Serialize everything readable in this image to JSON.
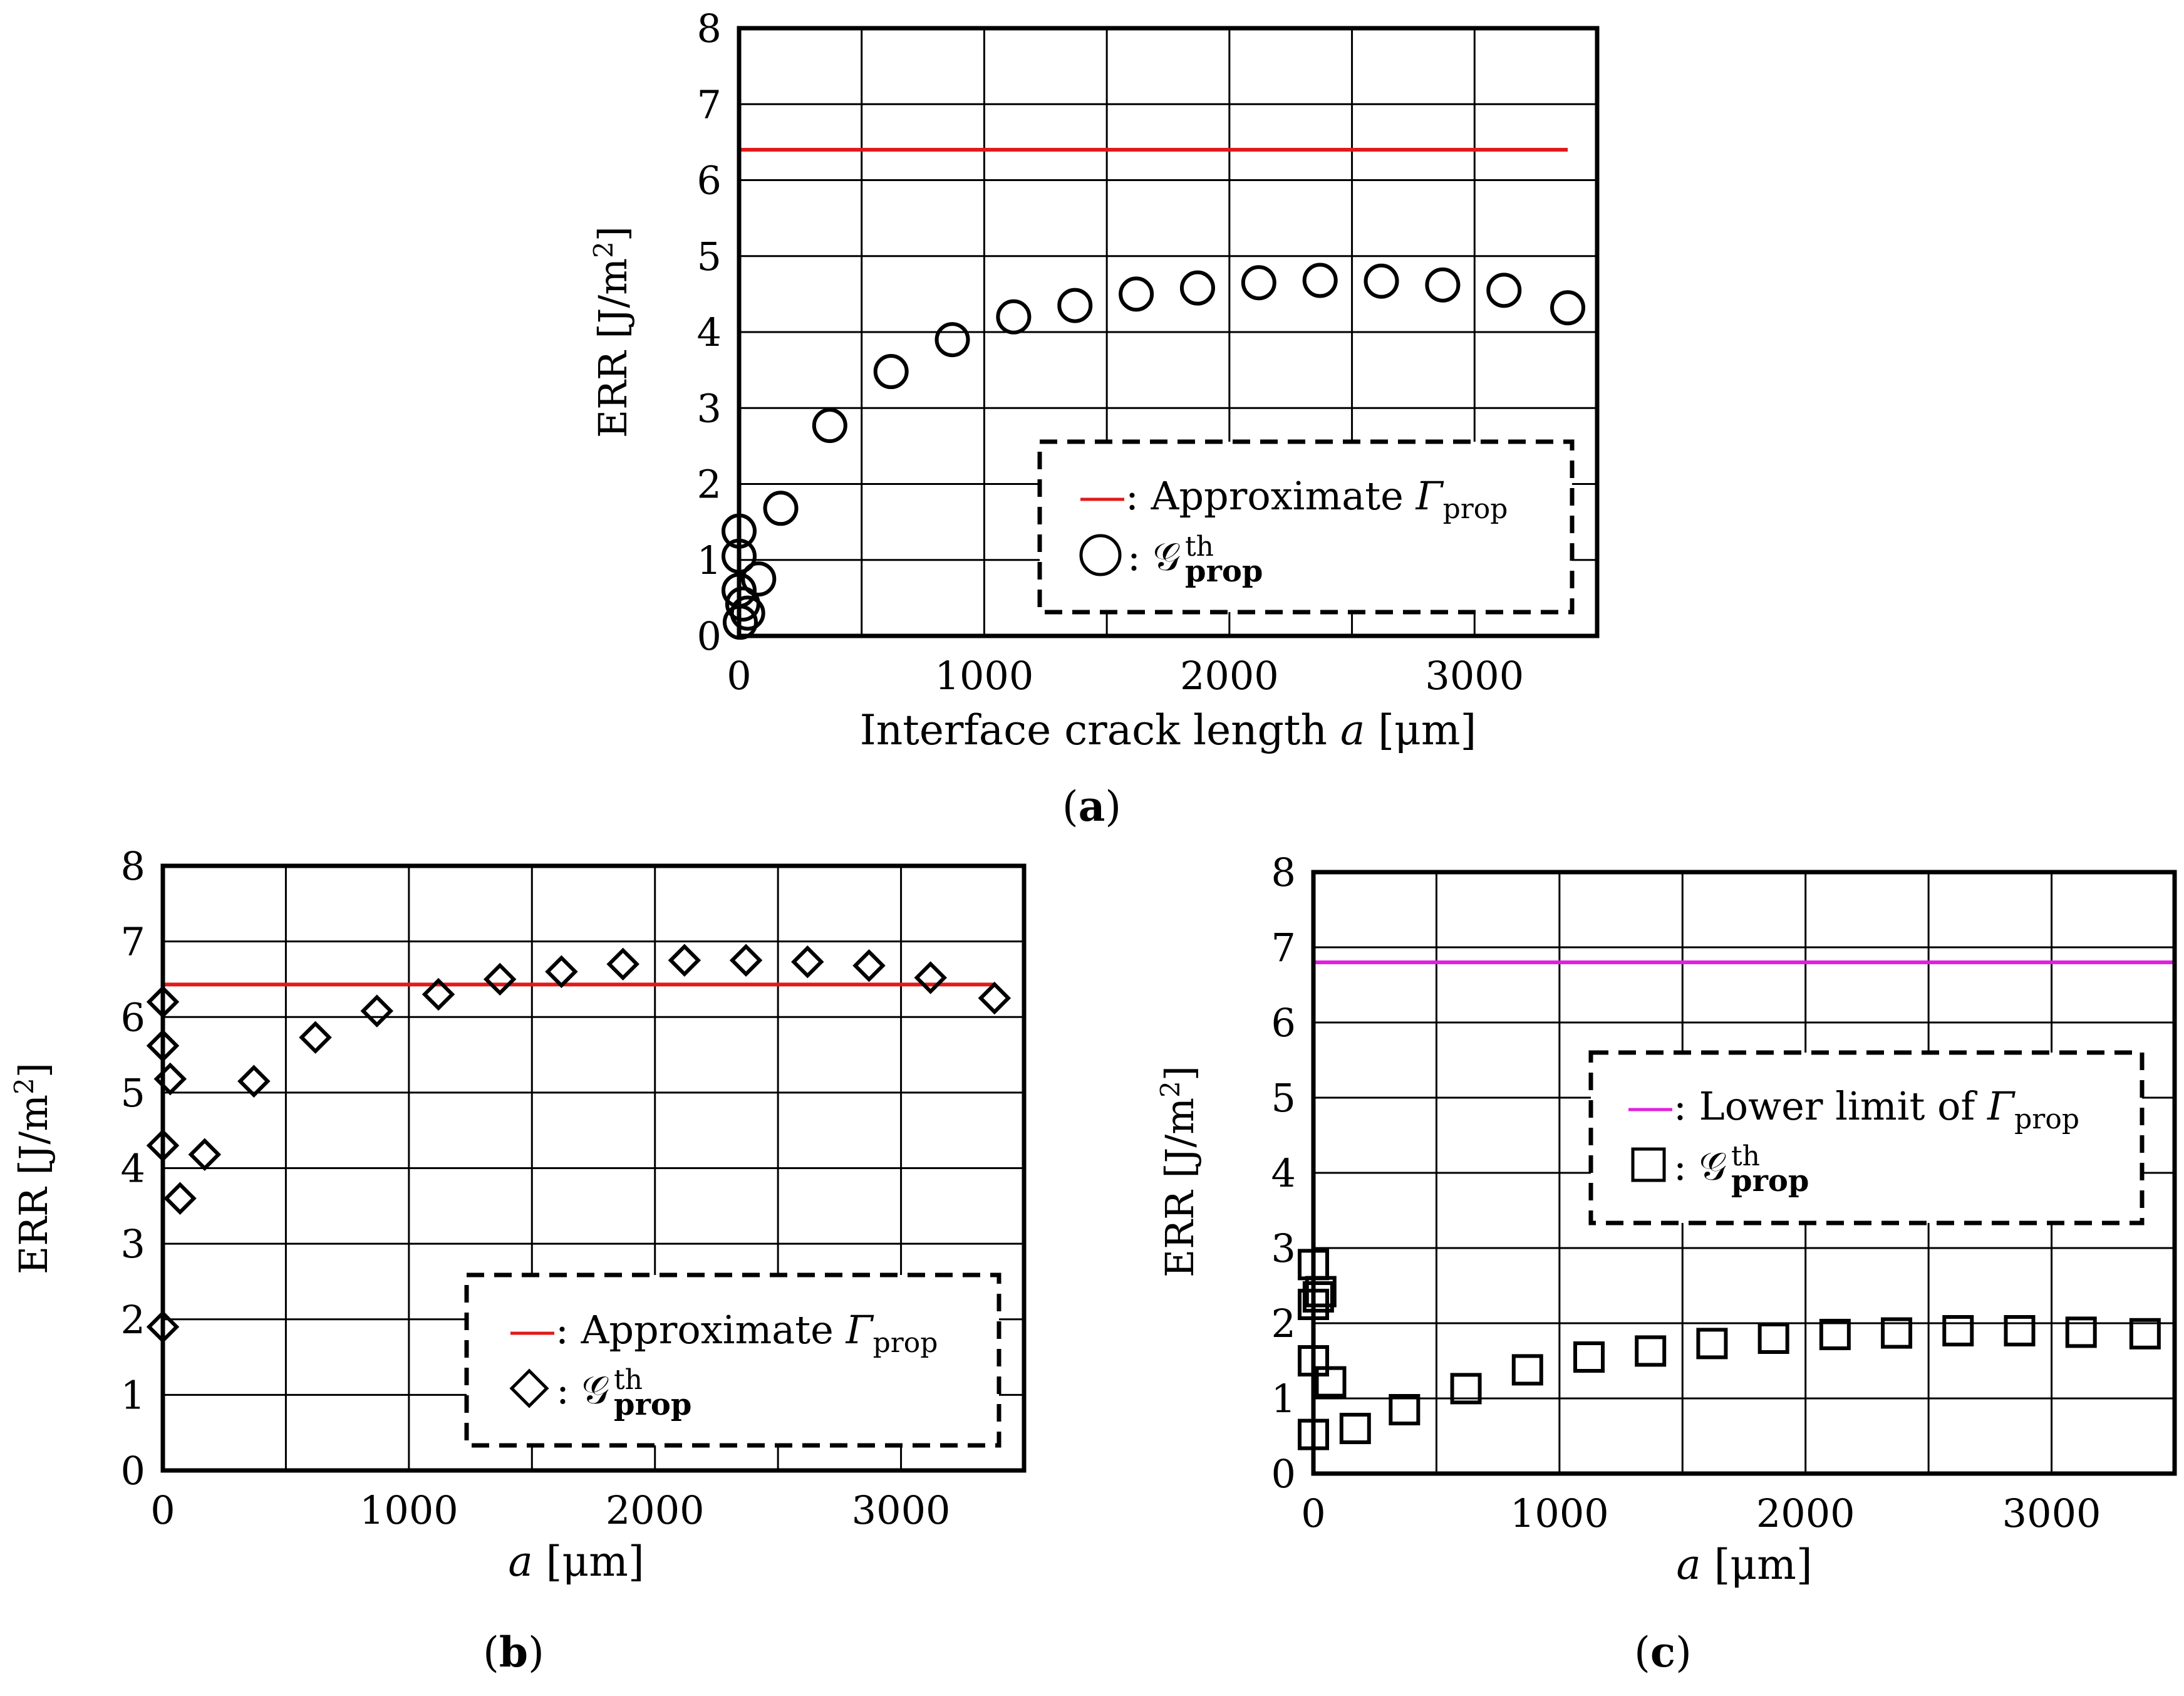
{
  "chart_data": [
    {
      "panel": "a",
      "type": "scatter",
      "caption_letter": "a",
      "xlabel_text": "Interface crack length ",
      "xlabel_var": "a",
      "xlabel_unit": " [μm]",
      "ylabel_main": "ERR [J/m",
      "ylabel_sup": "2",
      "ylabel_end": "]",
      "xlim": [
        0,
        3500
      ],
      "ylim": [
        0,
        8
      ],
      "xticks": [
        0,
        1000,
        2000,
        3000
      ],
      "yticks": [
        0,
        1,
        2,
        3,
        4,
        5,
        6,
        7,
        8
      ],
      "grid": true,
      "legend_position": "bottom-right",
      "reference_line": {
        "color": "#e11a1a",
        "y": 6.4,
        "x_range": [
          0,
          3380
        ],
        "label_prefix": ": Approximate ",
        "label_symbol": "Γ",
        "label_sub": "prop"
      },
      "series": [
        {
          "name": "G_prop^th",
          "marker": "circle",
          "label_prefix": ": ",
          "label_symbol": "𝒢",
          "label_sup": "th",
          "label_sub": "prop",
          "x": [
            0,
            0,
            0,
            5,
            15,
            35,
            80,
            170,
            370,
            620,
            870,
            1120,
            1370,
            1620,
            1870,
            2120,
            2370,
            2620,
            2870,
            3120,
            3380
          ],
          "y": [
            1.38,
            1.05,
            0.6,
            0.18,
            0.42,
            0.3,
            0.75,
            1.68,
            2.77,
            3.48,
            3.9,
            4.2,
            4.35,
            4.5,
            4.58,
            4.65,
            4.68,
            4.67,
            4.62,
            4.55,
            4.32
          ]
        }
      ]
    },
    {
      "panel": "b",
      "type": "scatter",
      "caption_letter": "b",
      "xlabel_text": "",
      "xlabel_var": "a",
      "xlabel_unit": " [μm]",
      "ylabel_main": "ERR [J/m",
      "ylabel_sup": "2",
      "ylabel_end": "]",
      "xlim": [
        0,
        3500
      ],
      "ylim": [
        0,
        8
      ],
      "xticks": [
        0,
        1000,
        2000,
        3000
      ],
      "yticks": [
        0,
        1,
        2,
        3,
        4,
        5,
        6,
        7,
        8
      ],
      "grid": true,
      "legend_position": "bottom-right",
      "reference_line": {
        "color": "#e11a1a",
        "y": 6.43,
        "x_range": [
          0,
          3380
        ],
        "label_prefix": ": Approximate ",
        "label_symbol": "Γ",
        "label_sub": "prop"
      },
      "series": [
        {
          "name": "G_prop^th",
          "marker": "diamond",
          "label_prefix": ": ",
          "label_symbol": "𝒢",
          "label_sup": "th",
          "label_sub": "prop",
          "x": [
            0,
            0,
            0,
            0,
            30,
            70,
            170,
            370,
            620,
            870,
            1120,
            1370,
            1620,
            1870,
            2120,
            2370,
            2620,
            2870,
            3120,
            3380
          ],
          "y": [
            6.2,
            5.62,
            4.3,
            1.9,
            5.18,
            3.6,
            4.18,
            5.15,
            5.73,
            6.08,
            6.3,
            6.5,
            6.6,
            6.7,
            6.75,
            6.75,
            6.73,
            6.68,
            6.52,
            6.25
          ]
        }
      ]
    },
    {
      "panel": "c",
      "type": "scatter",
      "caption_letter": "c",
      "xlabel_text": "",
      "xlabel_var": "a",
      "xlabel_unit": " [μm]",
      "ylabel_main": "ERR [J/m",
      "ylabel_sup": "2",
      "ylabel_end": "]",
      "xlim": [
        0,
        3500
      ],
      "ylim": [
        0,
        8
      ],
      "xticks": [
        0,
        1000,
        2000,
        3000
      ],
      "yticks": [
        0,
        1,
        2,
        3,
        4,
        5,
        6,
        7,
        8
      ],
      "grid": true,
      "legend_position": "top-right",
      "reference_line": {
        "color": "#e020e0",
        "y": 6.8,
        "x_range": [
          0,
          3500
        ],
        "label_prefix": ": Lower limit of ",
        "label_symbol": "Γ",
        "label_sub": "prop"
      },
      "series": [
        {
          "name": "G_prop^th",
          "marker": "square",
          "label_prefix": ": ",
          "label_symbol": "𝒢",
          "label_sup": "th",
          "label_sub": "prop",
          "x": [
            0,
            0,
            0,
            0,
            20,
            30,
            70,
            170,
            370,
            620,
            870,
            1120,
            1370,
            1620,
            1870,
            2120,
            2370,
            2620,
            2870,
            3120,
            3380
          ],
          "y": [
            2.78,
            2.25,
            1.5,
            0.52,
            2.35,
            2.42,
            1.22,
            0.6,
            0.85,
            1.13,
            1.38,
            1.55,
            1.63,
            1.73,
            1.8,
            1.85,
            1.87,
            1.9,
            1.9,
            1.88,
            1.86
          ]
        }
      ]
    }
  ]
}
